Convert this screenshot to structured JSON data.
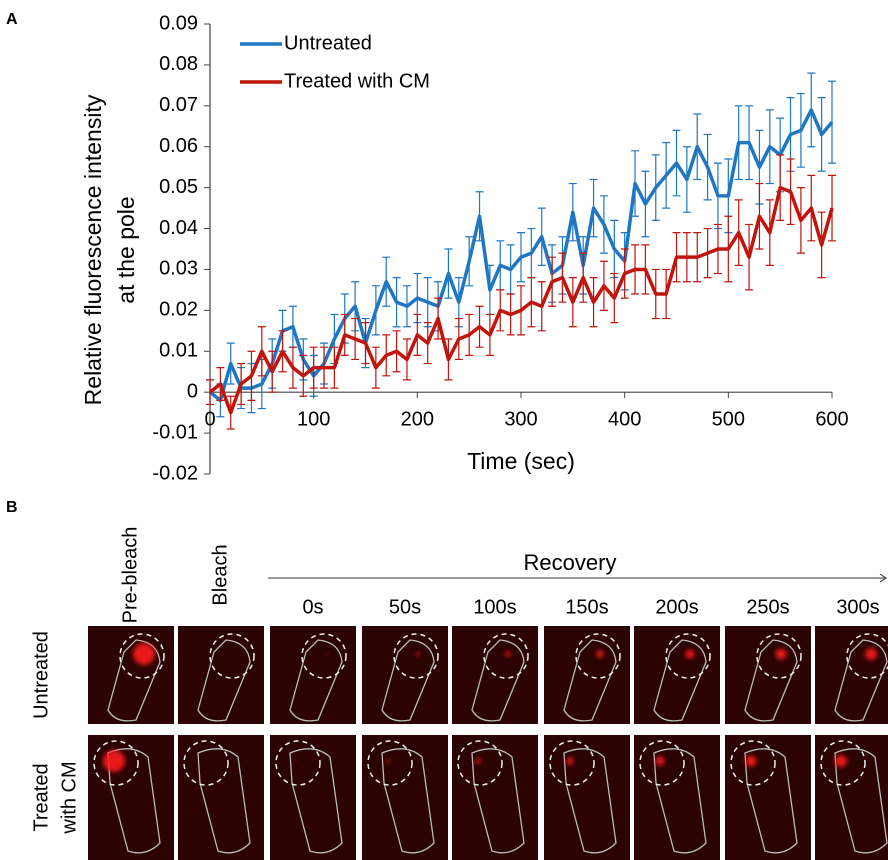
{
  "panel_a_label": "A",
  "chart_data": {
    "type": "line",
    "xlabel": "Time (sec)",
    "ylabel": [
      "Relative fluorescence intensity",
      "at the pole"
    ],
    "x": [
      0,
      10,
      20,
      30,
      40,
      50,
      60,
      70,
      80,
      90,
      100,
      110,
      120,
      130,
      140,
      150,
      160,
      170,
      180,
      190,
      200,
      210,
      220,
      230,
      240,
      250,
      260,
      270,
      280,
      290,
      300,
      310,
      320,
      330,
      340,
      350,
      360,
      370,
      380,
      390,
      400,
      410,
      420,
      430,
      440,
      450,
      460,
      470,
      480,
      490,
      500,
      510,
      520,
      530,
      540,
      550,
      560,
      570,
      580,
      590,
      600
    ],
    "series": [
      {
        "name": "Untreated",
        "color": "#1f77c4",
        "values": [
          0,
          -0.002,
          0.007,
          0.001,
          0.001,
          0.002,
          0.007,
          0.015,
          0.016,
          0.008,
          0.004,
          0.007,
          0.013,
          0.018,
          0.021,
          0.012,
          0.02,
          0.027,
          0.022,
          0.021,
          0.023,
          0.022,
          0.021,
          0.029,
          0.022,
          0.032,
          0.043,
          0.025,
          0.031,
          0.03,
          0.033,
          0.034,
          0.038,
          0.029,
          0.031,
          0.044,
          0.031,
          0.045,
          0.041,
          0.035,
          0.032,
          0.051,
          0.046,
          0.05,
          0.053,
          0.056,
          0.052,
          0.06,
          0.055,
          0.048,
          0.048,
          0.061,
          0.061,
          0.055,
          0.06,
          0.058,
          0.063,
          0.064,
          0.069,
          0.063,
          0.066
        ],
        "errors": [
          0.003,
          0.004,
          0.005,
          0.005,
          0.006,
          0.006,
          0.006,
          0.005,
          0.005,
          0.005,
          0.005,
          0.005,
          0.006,
          0.006,
          0.006,
          0.006,
          0.006,
          0.006,
          0.006,
          0.005,
          0.006,
          0.006,
          0.006,
          0.006,
          0.006,
          0.006,
          0.006,
          0.006,
          0.006,
          0.006,
          0.006,
          0.006,
          0.007,
          0.007,
          0.007,
          0.007,
          0.007,
          0.007,
          0.007,
          0.007,
          0.007,
          0.008,
          0.008,
          0.008,
          0.008,
          0.008,
          0.008,
          0.008,
          0.008,
          0.008,
          0.009,
          0.009,
          0.009,
          0.009,
          0.009,
          0.009,
          0.009,
          0.009,
          0.009,
          0.009,
          0.01
        ]
      },
      {
        "name": "Treated with CM",
        "color": "#c0140c",
        "values": [
          0,
          0.002,
          -0.005,
          0.002,
          0.004,
          0.01,
          0.005,
          0.01,
          0.006,
          0.004,
          0.006,
          0.006,
          0.006,
          0.014,
          0.013,
          0.012,
          0.006,
          0.009,
          0.01,
          0.008,
          0.014,
          0.012,
          0.018,
          0.008,
          0.013,
          0.014,
          0.016,
          0.014,
          0.02,
          0.019,
          0.02,
          0.022,
          0.021,
          0.027,
          0.028,
          0.022,
          0.028,
          0.022,
          0.026,
          0.023,
          0.029,
          0.03,
          0.03,
          0.024,
          0.024,
          0.033,
          0.033,
          0.033,
          0.034,
          0.035,
          0.035,
          0.039,
          0.033,
          0.043,
          0.039,
          0.05,
          0.049,
          0.042,
          0.045,
          0.036,
          0.045
        ],
        "errors": [
          0.003,
          0.004,
          0.004,
          0.005,
          0.006,
          0.006,
          0.005,
          0.005,
          0.005,
          0.005,
          0.005,
          0.005,
          0.005,
          0.005,
          0.005,
          0.005,
          0.005,
          0.005,
          0.005,
          0.005,
          0.005,
          0.005,
          0.005,
          0.005,
          0.005,
          0.005,
          0.005,
          0.005,
          0.005,
          0.005,
          0.006,
          0.006,
          0.006,
          0.006,
          0.006,
          0.006,
          0.006,
          0.006,
          0.006,
          0.006,
          0.006,
          0.006,
          0.006,
          0.006,
          0.006,
          0.006,
          0.006,
          0.006,
          0.006,
          0.006,
          0.008,
          0.008,
          0.008,
          0.008,
          0.008,
          0.008,
          0.008,
          0.008,
          0.008,
          0.008,
          0.008
        ]
      }
    ],
    "xlim": [
      0,
      600
    ],
    "xticks": [
      0,
      100,
      200,
      300,
      400,
      500,
      600
    ],
    "ylim": [
      -0.02,
      0.09
    ],
    "yticks": [
      -0.02,
      -0.01,
      0,
      0.01,
      0.02,
      0.03,
      0.04,
      0.05,
      0.06,
      0.07,
      0.08,
      0.09
    ],
    "legend": "upper left",
    "grid": false
  },
  "panel_b": {
    "label": "B",
    "columns": [
      "Pre-bleach",
      "Bleach"
    ],
    "recovery_label": "Recovery",
    "times": [
      "0s",
      "50s",
      "100s",
      "150s",
      "200s",
      "250s",
      "300s"
    ],
    "rows": [
      [
        "Untreated"
      ],
      [
        "Treated",
        "with CM"
      ]
    ]
  }
}
